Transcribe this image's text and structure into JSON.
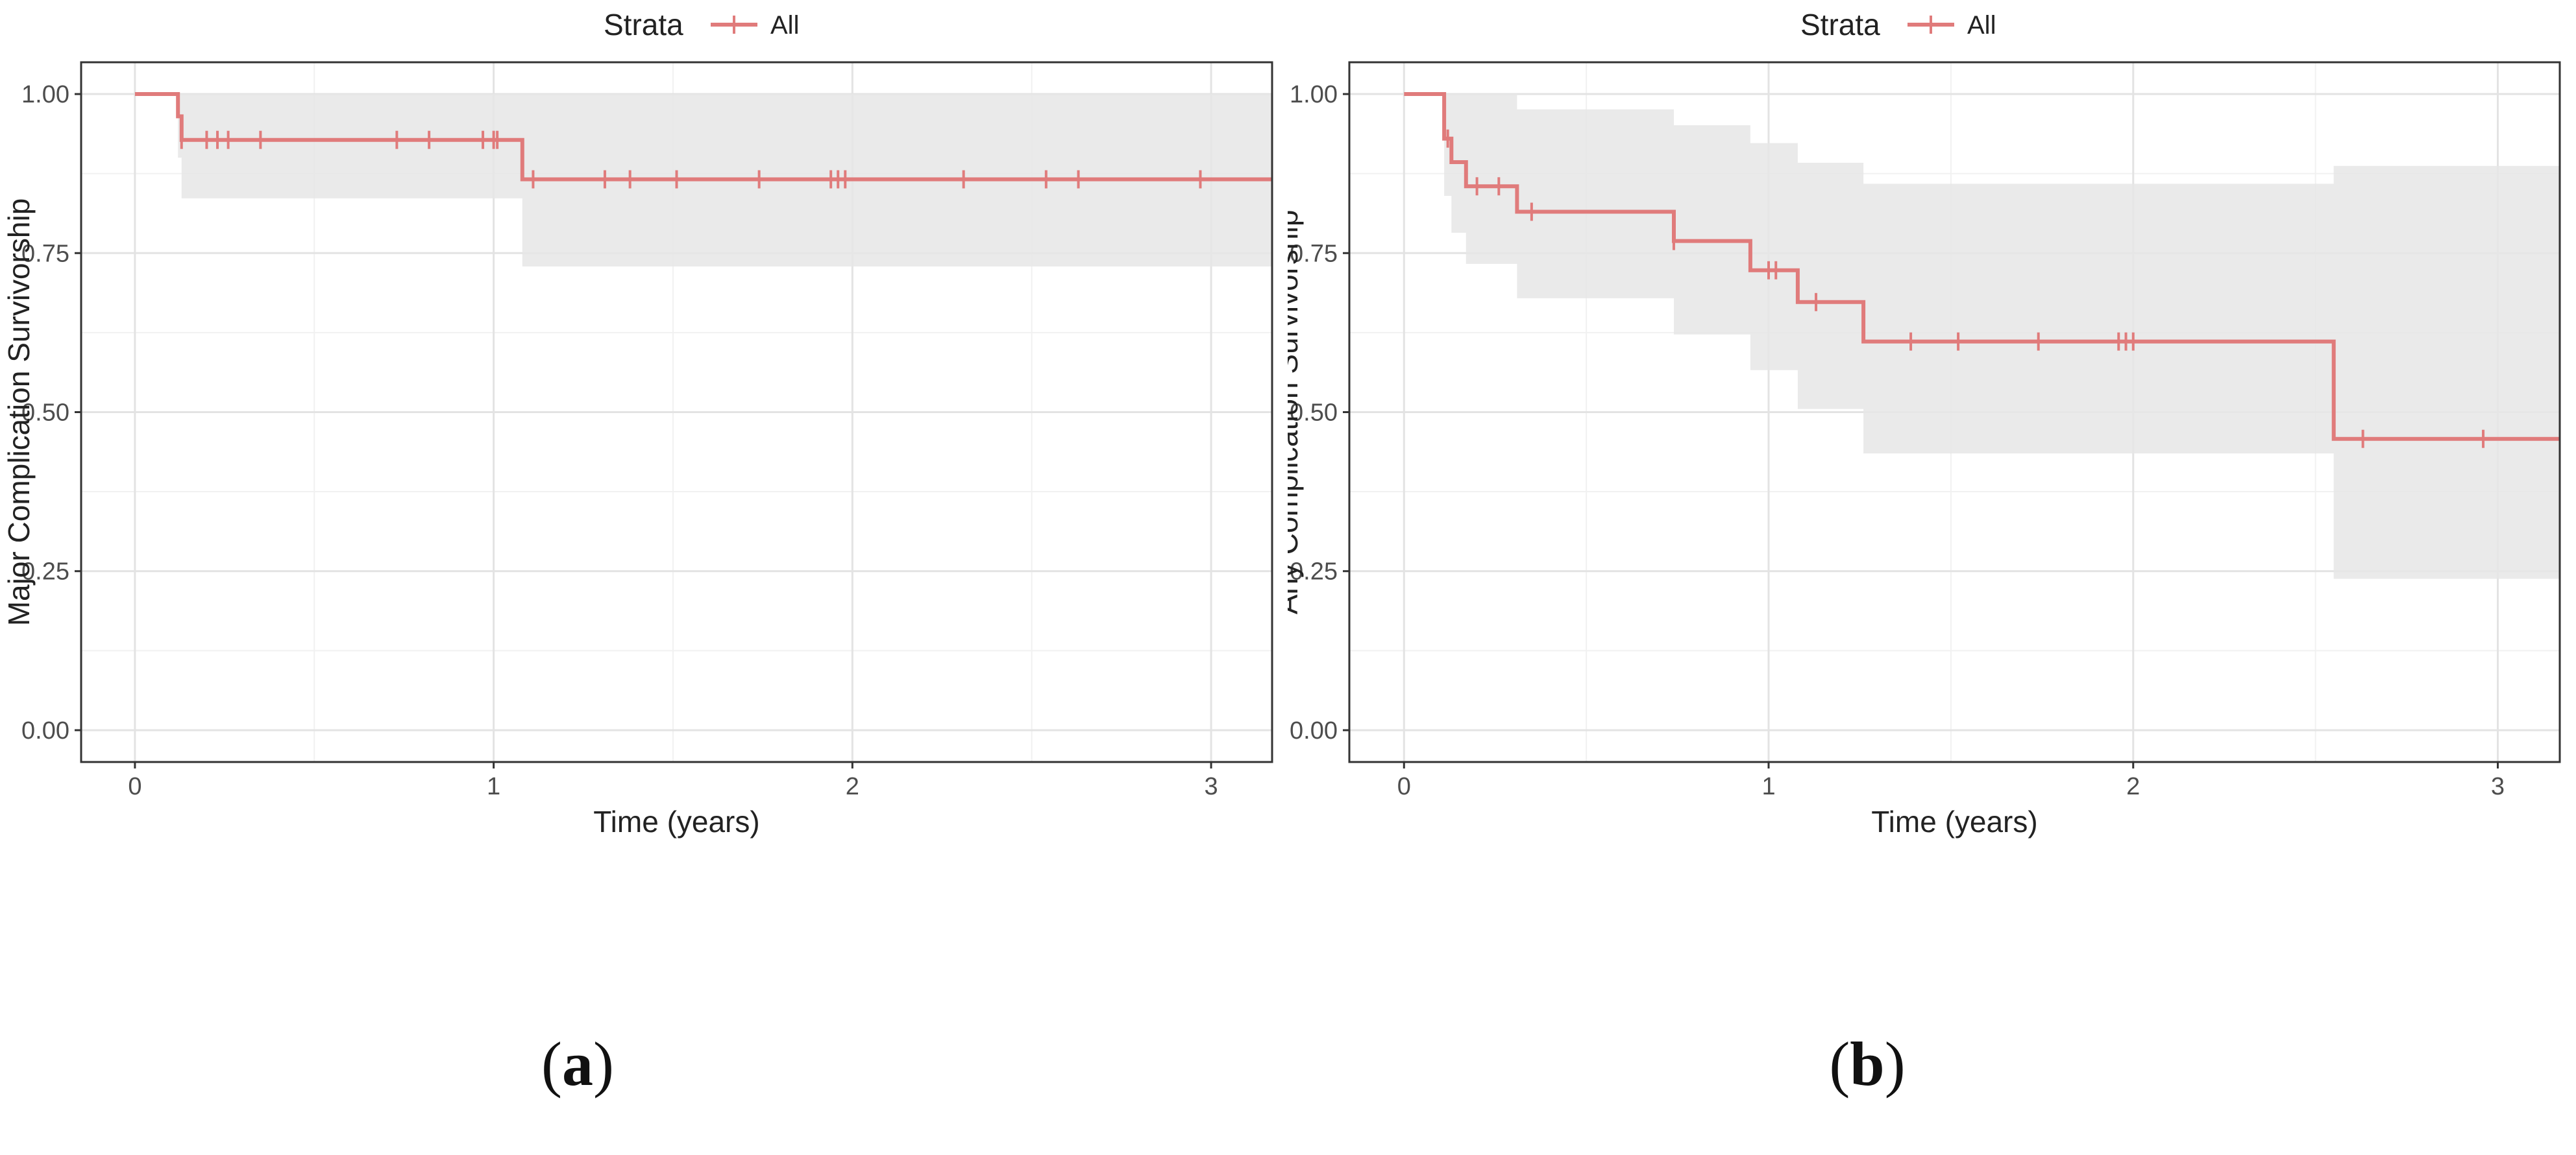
{
  "chart_data": [
    {
      "type": "line",
      "subtype": "kaplan-meier",
      "panel_label": "a",
      "legend": {
        "title": "Strata",
        "entries": [
          "All"
        ],
        "position": "top"
      },
      "xlabel": "Time (years)",
      "ylabel": "Major Complication Survivorship",
      "xlim": [
        -0.15,
        3.17
      ],
      "ylim": [
        -0.05,
        1.05
      ],
      "xticks": [
        0,
        1,
        2,
        3
      ],
      "xtick_labels": [
        "0",
        "1",
        "2",
        "3"
      ],
      "yticks": [
        0,
        0.25,
        0.5,
        0.75,
        1
      ],
      "ytick_labels": [
        "0.00",
        "0.25",
        "0.50",
        "0.75",
        "1.00"
      ],
      "grid": true,
      "series": [
        {
          "name": "All",
          "color": "#e07b7b",
          "steps": [
            {
              "t": 0,
              "s": 1.0,
              "lo": 1.0,
              "hi": 1.0
            },
            {
              "t": 0.12,
              "s": 0.965,
              "lo": 0.9,
              "hi": 1.0
            },
            {
              "t": 0.13,
              "s": 0.928,
              "lo": 0.836,
              "hi": 1.0
            },
            {
              "t": 1.08,
              "s": 0.866,
              "lo": 0.729,
              "hi": 1.0
            }
          ],
          "censor_times": [
            0.13,
            0.2,
            0.23,
            0.26,
            0.35,
            0.73,
            0.82,
            0.97,
            1.0,
            1.01,
            1.11,
            1.31,
            1.38,
            1.51,
            1.74,
            1.94,
            1.96,
            1.98,
            2.31,
            2.54,
            2.63,
            2.97
          ]
        }
      ],
      "t_end": 3.17
    },
    {
      "type": "line",
      "subtype": "kaplan-meier",
      "panel_label": "b",
      "legend": {
        "title": "Strata",
        "entries": [
          "All"
        ],
        "position": "top"
      },
      "xlabel": "Time (years)",
      "ylabel": "Any Complication Survivorship",
      "xlim": [
        -0.15,
        3.17
      ],
      "ylim": [
        -0.05,
        1.05
      ],
      "xticks": [
        0,
        1,
        2,
        3
      ],
      "xtick_labels": [
        "0",
        "1",
        "2",
        "3"
      ],
      "yticks": [
        0,
        0.25,
        0.5,
        0.75,
        1
      ],
      "ytick_labels": [
        "0.00",
        "0.25",
        "0.50",
        "0.75",
        "1.00"
      ],
      "grid": true,
      "series": [
        {
          "name": "All",
          "color": "#e07b7b",
          "steps": [
            {
              "t": 0,
              "s": 1.0,
              "lo": 1.0,
              "hi": 1.0
            },
            {
              "t": 0.11,
              "s": 0.93,
              "lo": 0.84,
              "hi": 1.0
            },
            {
              "t": 0.13,
              "s": 0.893,
              "lo": 0.782,
              "hi": 1.0
            },
            {
              "t": 0.17,
              "s": 0.855,
              "lo": 0.733,
              "hi": 1.0
            },
            {
              "t": 0.31,
              "s": 0.815,
              "lo": 0.679,
              "hi": 0.976
            },
            {
              "t": 0.74,
              "s": 0.769,
              "lo": 0.622,
              "hi": 0.951
            },
            {
              "t": 0.95,
              "s": 0.723,
              "lo": 0.566,
              "hi": 0.923
            },
            {
              "t": 1.08,
              "s": 0.673,
              "lo": 0.505,
              "hi": 0.892
            },
            {
              "t": 1.26,
              "s": 0.611,
              "lo": 0.435,
              "hi": 0.859
            },
            {
              "t": 2.55,
              "s": 0.458,
              "lo": 0.238,
              "hi": 0.887
            }
          ],
          "censor_times": [
            0.12,
            0.2,
            0.26,
            0.35,
            0.74,
            1.0,
            1.02,
            1.13,
            1.39,
            1.52,
            1.74,
            1.96,
            1.98,
            2.0,
            2.63,
            2.96
          ]
        }
      ],
      "t_end": 3.17
    }
  ]
}
